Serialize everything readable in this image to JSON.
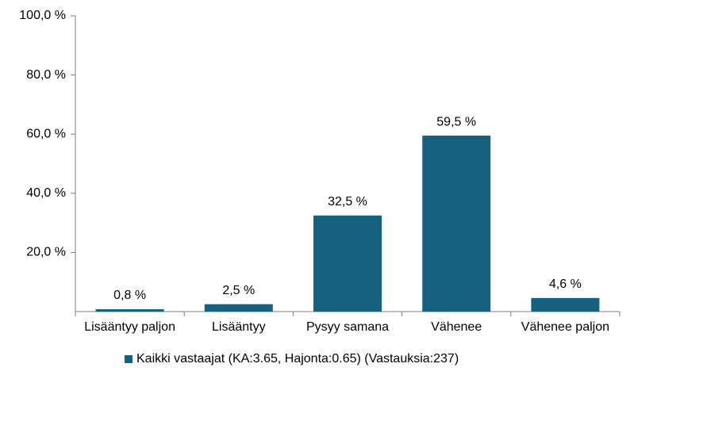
{
  "chart_data": {
    "type": "bar",
    "categories": [
      "Lisääntyy paljon",
      "Lisääntyy",
      "Pysyy samana",
      "Vähenee",
      "Vähenee paljon"
    ],
    "series": [
      {
        "name": "Kaikki vastaajat (KA:3.65, Hajonta:0.65) (Vastauksia:237)",
        "color": "#17607f",
        "values": [
          0.8,
          2.5,
          32.5,
          59.5,
          4.6
        ],
        "value_labels": [
          "0,8 %",
          "2,5 %",
          "32,5 %",
          "59,5 %",
          "4,6 %"
        ]
      }
    ],
    "ylim": [
      0,
      100
    ],
    "yticks": [
      {
        "value": 20,
        "label": "20,0 %"
      },
      {
        "value": 40,
        "label": "40,0 %"
      },
      {
        "value": 60,
        "label": "60,0 %"
      },
      {
        "value": 80,
        "label": "80,0 %"
      },
      {
        "value": 100,
        "label": "100,0 %"
      }
    ],
    "grid": false,
    "legend": "bottom"
  }
}
